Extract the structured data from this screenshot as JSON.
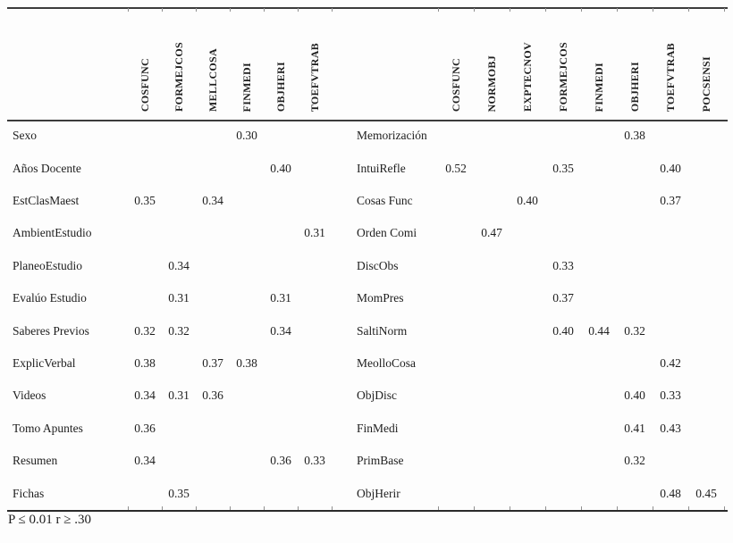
{
  "page": {
    "footnote": "P ≤ 0.01 r ≥ .30"
  },
  "colors": {
    "background": "#fdfdfd",
    "text": "#1e1e1e",
    "rule": "#3c3c3c",
    "tick": "#909090"
  },
  "tables": [
    {
      "name": "left-correlation-table",
      "headers": [
        "COSFUNC",
        "FORMEJCOS",
        "MELLCOSA",
        "FINMEDI",
        "OBJHERI",
        "TOEFVTRAB"
      ],
      "rows": [
        {
          "label": "Sexo",
          "values": [
            "",
            "",
            "",
            "0.30",
            "",
            ""
          ]
        },
        {
          "label": "Años Docente",
          "values": [
            "",
            "",
            "",
            "",
            "0.40",
            ""
          ]
        },
        {
          "label": "EstClasMaest",
          "values": [
            "0.35",
            "",
            "0.34",
            "",
            "",
            ""
          ]
        },
        {
          "label": "AmbientEstudio",
          "values": [
            "",
            "",
            "",
            "",
            "",
            "0.31"
          ]
        },
        {
          "label": "PlaneoEstudio",
          "values": [
            "",
            "0.34",
            "",
            "",
            "",
            ""
          ]
        },
        {
          "label": "Evalúo Estudio",
          "values": [
            "",
            "0.31",
            "",
            "",
            "0.31",
            ""
          ]
        },
        {
          "label": "Saberes Previos",
          "values": [
            "0.32",
            "0.32",
            "",
            "",
            "0.34",
            ""
          ]
        },
        {
          "label": "ExplicVerbal",
          "values": [
            "0.38",
            "",
            "0.37",
            "0.38",
            "",
            ""
          ]
        },
        {
          "label": "Videos",
          "values": [
            "0.34",
            "0.31",
            "0.36",
            "",
            "",
            ""
          ]
        },
        {
          "label": "Tomo Apuntes",
          "values": [
            "0.36",
            "",
            "",
            "",
            "",
            ""
          ]
        },
        {
          "label": "Resumen",
          "values": [
            "0.34",
            "",
            "",
            "",
            "0.36",
            "0.33"
          ]
        },
        {
          "label": "Fichas",
          "values": [
            "",
            "0.35",
            "",
            "",
            "",
            ""
          ]
        }
      ]
    },
    {
      "name": "right-correlation-table",
      "headers": [
        "COSFUNC",
        "NORMOBJ",
        "EXPTECNOV",
        "FORMEJCOS",
        "FINMEDI",
        "OBJHERI",
        "TOEFVTRAB",
        "POCSENSI"
      ],
      "rows": [
        {
          "label": "Memorización",
          "values": [
            "",
            "",
            "",
            "",
            "",
            "0.38",
            "",
            ""
          ]
        },
        {
          "label": "IntuiRefle",
          "values": [
            "0.52",
            "",
            "",
            "0.35",
            "",
            "",
            "0.40",
            ""
          ]
        },
        {
          "label": "Cosas Func",
          "values": [
            "",
            "",
            "0.40",
            "",
            "",
            "",
            "0.37",
            ""
          ]
        },
        {
          "label": "Orden Comi",
          "values": [
            "",
            "0.47",
            "",
            "",
            "",
            "",
            "",
            ""
          ]
        },
        {
          "label": "DiscObs",
          "values": [
            "",
            "",
            "",
            "0.33",
            "",
            "",
            "",
            ""
          ]
        },
        {
          "label": "MomPres",
          "values": [
            "",
            "",
            "",
            "0.37",
            "",
            "",
            "",
            ""
          ]
        },
        {
          "label": "SaltiNorm",
          "values": [
            "",
            "",
            "",
            "0.40",
            "0.44",
            "0.32",
            "",
            ""
          ]
        },
        {
          "label": "MeolloCosa",
          "values": [
            "",
            "",
            "",
            "",
            "",
            "",
            "0.42",
            ""
          ]
        },
        {
          "label": "ObjDisc",
          "values": [
            "",
            "",
            "",
            "",
            "",
            "0.40",
            "0.33",
            ""
          ]
        },
        {
          "label": "FinMedi",
          "values": [
            "",
            "",
            "",
            "",
            "",
            "0.41",
            "0.43",
            ""
          ]
        },
        {
          "label": "PrimBase",
          "values": [
            "",
            "",
            "",
            "",
            "",
            "0.32",
            "",
            ""
          ]
        },
        {
          "label": "ObjHerir",
          "values": [
            "",
            "",
            "",
            "",
            "",
            "",
            "0.48",
            "0.45"
          ]
        }
      ]
    }
  ]
}
